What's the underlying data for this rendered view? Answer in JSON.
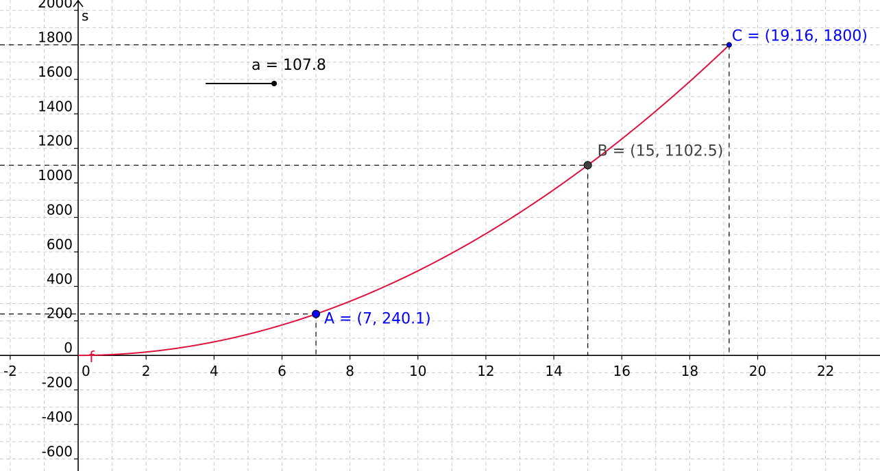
{
  "chart_data": {
    "type": "line",
    "title": "",
    "xlabel": "",
    "ylabel": "s",
    "xlim": [
      -2.3,
      23.6
    ],
    "ylim": [
      -670,
      2060
    ],
    "grid": true,
    "x_ticks": [
      -2,
      0,
      2,
      4,
      6,
      8,
      10,
      12,
      14,
      16,
      18,
      20,
      22
    ],
    "y_ticks": [
      -600,
      -400,
      -200,
      0,
      200,
      400,
      600,
      800,
      1000,
      1200,
      1400,
      1600,
      1800,
      2000
    ],
    "x_tick_labels": [
      "-2",
      "0",
      "2",
      "4",
      "6",
      "8",
      "10",
      "12",
      "14",
      "16",
      "18",
      "20",
      "22"
    ],
    "y_tick_labels": [
      "-600",
      "-400",
      "-200",
      "0",
      "200",
      "400",
      "600",
      "800",
      "1000",
      "1200",
      "1400",
      "1600",
      "1800",
      "2000"
    ],
    "function": {
      "name": "f",
      "expression_coeff": 4.9,
      "x_range": [
        0,
        19.16
      ],
      "color": "#e0103c"
    },
    "points": [
      {
        "name": "A",
        "x": 7,
        "y": 240.1,
        "label": "A = (7, 240.1)",
        "color": "#0000ff",
        "label_color": "#0000ff"
      },
      {
        "name": "B",
        "x": 15,
        "y": 1102.5,
        "label": "B = (15, 1102.5)",
        "color": "#404040",
        "label_color": "#404040"
      },
      {
        "name": "C",
        "x": 19.16,
        "y": 1800,
        "label": "C = (19.16, 1800)",
        "color": "#0000ff",
        "label_color": "#0000ff"
      }
    ],
    "slider": {
      "label": "a = 107.8",
      "value": 107.8,
      "min": 0,
      "max": 107.8
    }
  }
}
